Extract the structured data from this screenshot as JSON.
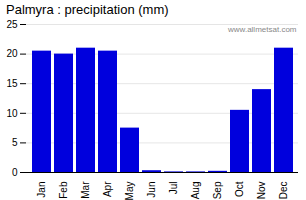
{
  "chart_data": {
    "type": "bar",
    "title": "Palmyra : precipitation (mm)",
    "categories": [
      "Jan",
      "Feb",
      "Mar",
      "Apr",
      "May",
      "Jun",
      "Jul",
      "Aug",
      "Sep",
      "Oct",
      "Nov",
      "Dec"
    ],
    "values": [
      20.5,
      20.0,
      21.0,
      20.5,
      7.5,
      0.3,
      0.1,
      0.1,
      0.2,
      10.5,
      14.0,
      21.0
    ],
    "color": "#0000dd",
    "ylim": [
      0,
      25
    ],
    "yticks": [
      0,
      5,
      10,
      15,
      20,
      25
    ],
    "grid": true,
    "annotation": "www.allmetsat.com"
  }
}
